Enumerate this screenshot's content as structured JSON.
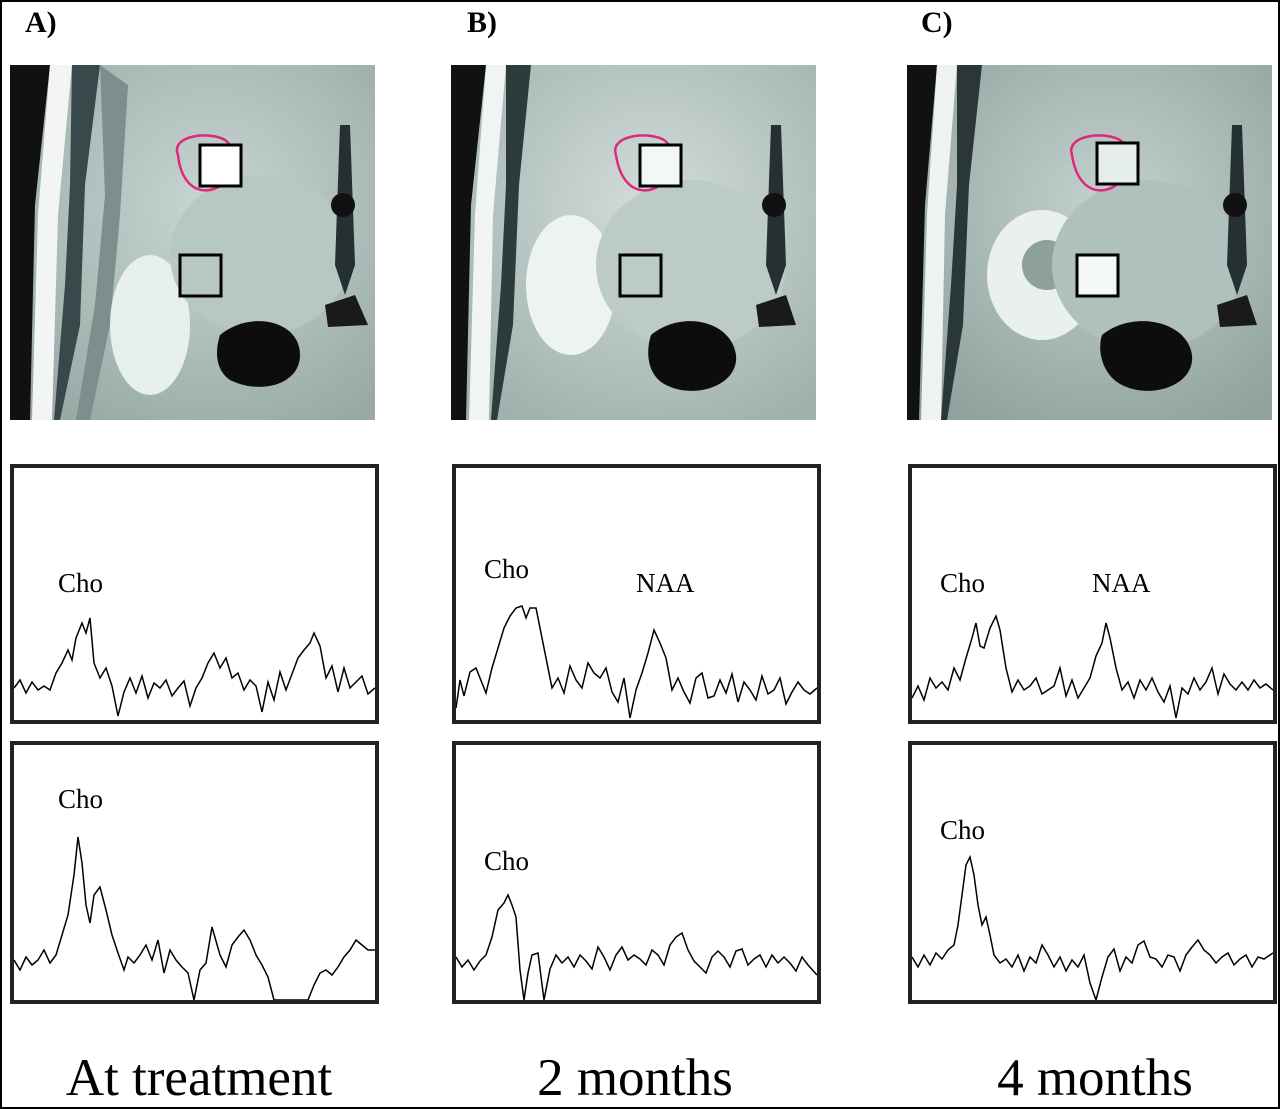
{
  "panels": [
    {
      "letter": "A)",
      "caption": "At treatment",
      "spectra": {
        "top": {
          "labels": [
            "Cho"
          ]
        },
        "bottom": {
          "labels": [
            "Cho"
          ]
        }
      }
    },
    {
      "letter": "B)",
      "caption": "2 months",
      "spectra": {
        "top": {
          "labels": [
            "Cho",
            "NAA"
          ]
        },
        "bottom": {
          "labels": [
            "Cho"
          ]
        }
      }
    },
    {
      "letter": "C)",
      "caption": "4 months",
      "spectra": {
        "top": {
          "labels": [
            "Cho",
            "NAA"
          ]
        },
        "bottom": {
          "labels": [
            "Cho"
          ]
        }
      }
    }
  ],
  "colors": {
    "tumor_outline": "#e0287a",
    "voxel_box": "#000000",
    "spectrum_line": "#000000",
    "frame": "#000000"
  }
}
